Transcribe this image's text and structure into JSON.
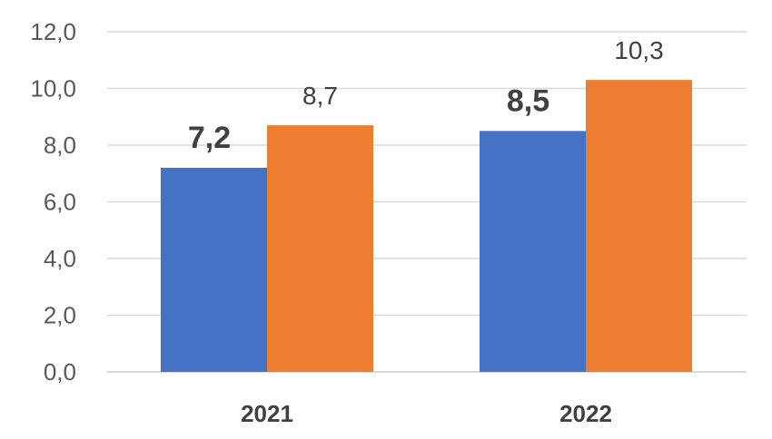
{
  "chart_data": {
    "type": "bar",
    "categories": [
      "2021",
      "2022"
    ],
    "series": [
      {
        "values": [
          7.2,
          8.5
        ],
        "labels": [
          "7,2",
          "8,5"
        ],
        "label_style": "bold",
        "color": "#4472c4"
      },
      {
        "values": [
          8.7,
          10.3
        ],
        "labels": [
          "8,7",
          "10,3"
        ],
        "label_style": "normal",
        "color": "#ed7d31"
      }
    ],
    "ylim": [
      0,
      12
    ],
    "yticks": [
      0,
      2,
      4,
      6,
      8,
      10,
      12
    ],
    "ytick_labels": [
      "0,0",
      "2,0",
      "4,0",
      "6,0",
      "8,0",
      "10,0",
      "12,0"
    ],
    "grid": true,
    "title": "",
    "xlabel": "",
    "ylabel": ""
  }
}
